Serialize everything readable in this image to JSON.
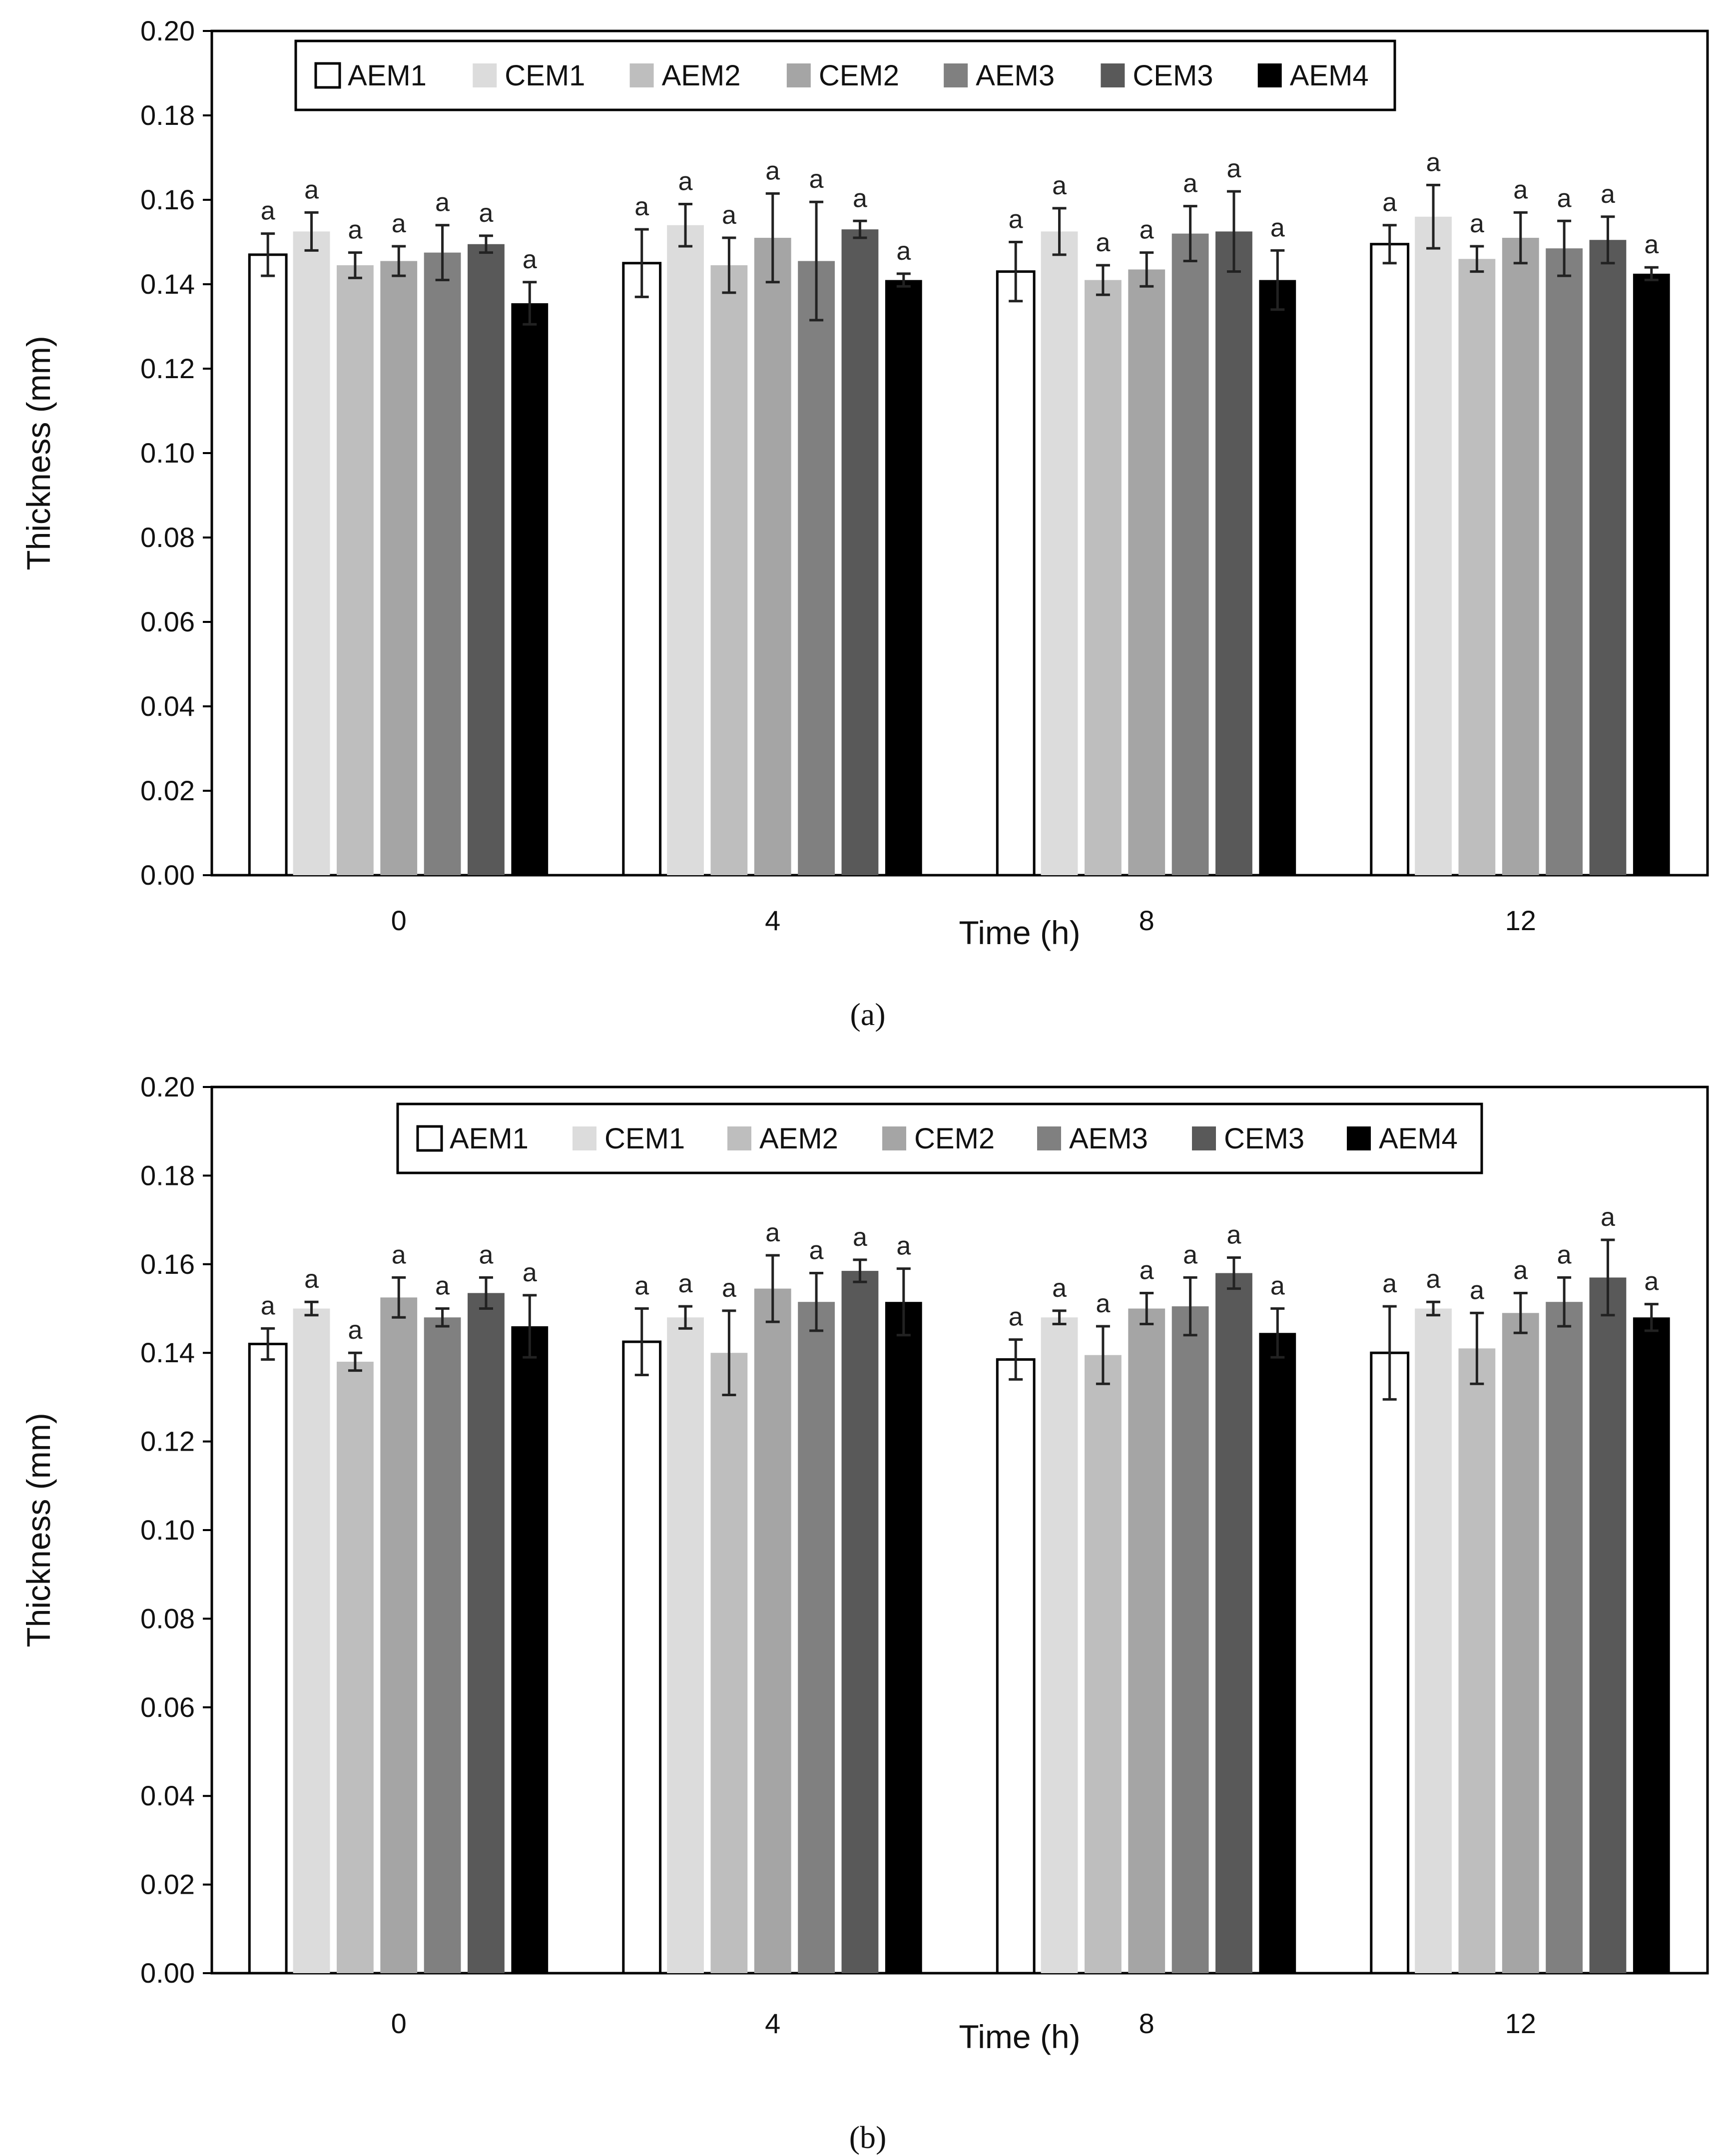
{
  "chart_data": [
    {
      "type": "bar",
      "panel_label": "a",
      "categories": [
        "0",
        "4",
        "8",
        "12"
      ],
      "xlabel": "Time (h)",
      "ylabel": "Thickness (mm)",
      "ylim": [
        0,
        0.2
      ],
      "yticks": [
        "0.00",
        "0.02",
        "0.04",
        "0.06",
        "0.08",
        "0.10",
        "0.12",
        "0.14",
        "0.16",
        "0.18",
        "0.20"
      ],
      "legend_position": "top",
      "series": [
        {
          "name": "AEM1",
          "values": [
            0.147,
            0.145,
            0.143,
            0.1495
          ],
          "errors": [
            0.005,
            0.008,
            0.007,
            0.0045
          ],
          "letters": [
            "a",
            "a",
            "a",
            "a"
          ]
        },
        {
          "name": "CEM1",
          "values": [
            0.1525,
            0.154,
            0.1525,
            0.156
          ],
          "errors": [
            0.0045,
            0.005,
            0.0055,
            0.0075
          ],
          "letters": [
            "a",
            "a",
            "a",
            "a"
          ]
        },
        {
          "name": "AEM2",
          "values": [
            0.1445,
            0.1445,
            0.141,
            0.146
          ],
          "errors": [
            0.003,
            0.0065,
            0.0035,
            0.003
          ],
          "letters": [
            "a",
            "a",
            "a",
            "a"
          ]
        },
        {
          "name": "CEM2",
          "values": [
            0.1455,
            0.151,
            0.1435,
            0.151
          ],
          "errors": [
            0.0035,
            0.0105,
            0.004,
            0.006
          ],
          "letters": [
            "a",
            "a",
            "a",
            "a"
          ]
        },
        {
          "name": "AEM3",
          "values": [
            0.1475,
            0.1455,
            0.152,
            0.1485
          ],
          "errors": [
            0.0065,
            0.014,
            0.0065,
            0.0065
          ],
          "letters": [
            "a",
            "a",
            "a",
            "a"
          ]
        },
        {
          "name": "CEM3",
          "values": [
            0.1495,
            0.153,
            0.1525,
            0.1505
          ],
          "errors": [
            0.002,
            0.002,
            0.0095,
            0.0055
          ],
          "letters": [
            "a",
            "a",
            "a",
            "a"
          ]
        },
        {
          "name": "AEM4",
          "values": [
            0.1355,
            0.141,
            0.141,
            0.1425
          ],
          "errors": [
            0.005,
            0.0015,
            0.007,
            0.0015
          ],
          "letters": [
            "a",
            "a",
            "a",
            "a"
          ]
        }
      ],
      "colors": [
        "#ffffff",
        "#dcdcdc",
        "#bebebe",
        "#a5a5a5",
        "#808080",
        "#595959",
        "#000000"
      ]
    },
    {
      "type": "bar",
      "panel_label": "b",
      "categories": [
        "0",
        "4",
        "8",
        "12"
      ],
      "xlabel": "Time (h)",
      "ylabel": "Thickness (mm)",
      "ylim": [
        0,
        0.2
      ],
      "yticks": [
        "0.00",
        "0.02",
        "0.04",
        "0.06",
        "0.08",
        "0.10",
        "0.12",
        "0.14",
        "0.16",
        "0.18",
        "0.20"
      ],
      "legend_position": "top",
      "series": [
        {
          "name": "AEM1",
          "values": [
            0.142,
            0.1425,
            0.1385,
            0.14
          ],
          "errors": [
            0.0035,
            0.0075,
            0.0045,
            0.0105
          ],
          "letters": [
            "a",
            "a",
            "a",
            "a"
          ]
        },
        {
          "name": "CEM1",
          "values": [
            0.15,
            0.148,
            0.148,
            0.15
          ],
          "errors": [
            0.0015,
            0.0025,
            0.0015,
            0.0015
          ],
          "letters": [
            "a",
            "a",
            "a",
            "a"
          ]
        },
        {
          "name": "AEM2",
          "values": [
            0.138,
            0.14,
            0.1395,
            0.141
          ],
          "errors": [
            0.002,
            0.0095,
            0.0065,
            0.008
          ],
          "letters": [
            "a",
            "a",
            "a",
            "a"
          ]
        },
        {
          "name": "CEM2",
          "values": [
            0.1525,
            0.1545,
            0.15,
            0.149
          ],
          "errors": [
            0.0045,
            0.0075,
            0.0035,
            0.0045
          ],
          "letters": [
            "a",
            "a",
            "a",
            "a"
          ]
        },
        {
          "name": "AEM3",
          "values": [
            0.148,
            0.1515,
            0.1505,
            0.1515
          ],
          "errors": [
            0.002,
            0.0065,
            0.0065,
            0.0055
          ],
          "letters": [
            "a",
            "a",
            "a",
            "a"
          ]
        },
        {
          "name": "CEM3",
          "values": [
            0.1535,
            0.1585,
            0.158,
            0.157
          ],
          "errors": [
            0.0035,
            0.0025,
            0.0035,
            0.0085
          ],
          "letters": [
            "a",
            "a",
            "a",
            "a"
          ]
        },
        {
          "name": "AEM4",
          "values": [
            0.146,
            0.1515,
            0.1445,
            0.148
          ],
          "errors": [
            0.007,
            0.0075,
            0.0055,
            0.003
          ],
          "letters": [
            "a",
            "a",
            "a",
            "a"
          ]
        }
      ],
      "colors": [
        "#ffffff",
        "#dcdcdc",
        "#bebebe",
        "#a5a5a5",
        "#808080",
        "#595959",
        "#000000"
      ]
    }
  ],
  "captions": [
    "(a)",
    "(b)"
  ]
}
